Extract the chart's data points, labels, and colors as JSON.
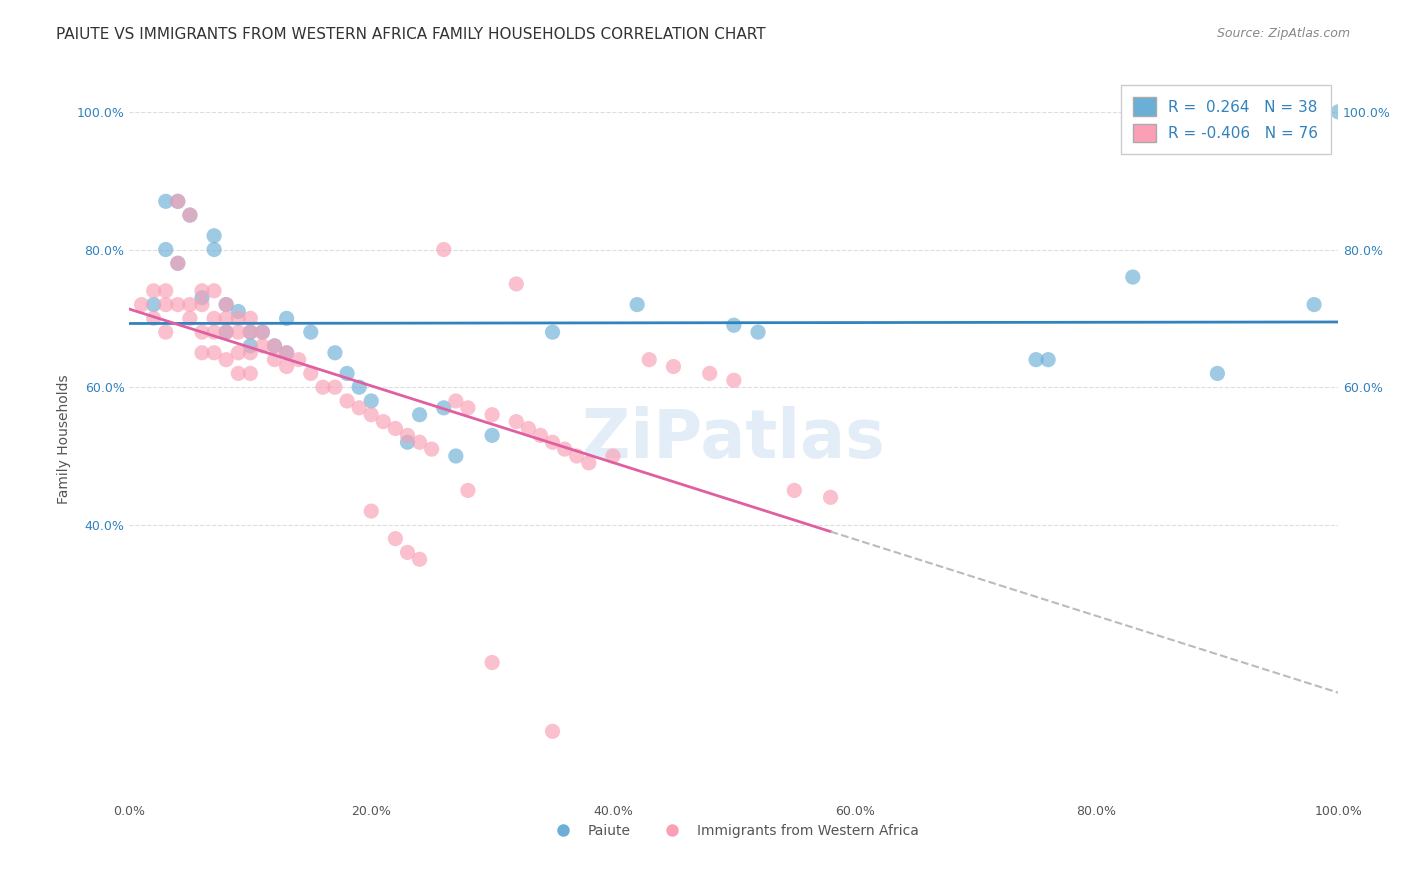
{
  "title": "PAIUTE VS IMMIGRANTS FROM WESTERN AFRICA FAMILY HOUSEHOLDS CORRELATION CHART",
  "source": "Source: ZipAtlas.com",
  "ylabel": "Family Households",
  "xlabel": "",
  "xlim": [
    0.0,
    1.0
  ],
  "ylim": [
    0.0,
    1.05
  ],
  "xtick_labels": [
    "0.0%",
    "20.0%",
    "40.0%",
    "60.0%",
    "80.0%",
    "100.0%"
  ],
  "xtick_vals": [
    0.0,
    0.2,
    0.4,
    0.6,
    0.8,
    1.0
  ],
  "ytick_left_vals": [
    0.4,
    0.6,
    0.8,
    1.0
  ],
  "ytick_left_labels": [
    "40.0%",
    "60.0%",
    "80.0%",
    "100.0%"
  ],
  "ytick_right_vals": [
    0.6,
    0.8,
    1.0
  ],
  "ytick_right_labels": [
    "60.0%",
    "80.0%",
    "100.0%"
  ],
  "blue_color": "#6baed6",
  "pink_color": "#fa9fb5",
  "blue_line_color": "#3182bd",
  "pink_line_color": "#e05fa0",
  "dashed_line_color": "#bbbbbb",
  "blue_points": [
    [
      0.02,
      0.72
    ],
    [
      0.03,
      0.8
    ],
    [
      0.03,
      0.87
    ],
    [
      0.04,
      0.87
    ],
    [
      0.04,
      0.78
    ],
    [
      0.05,
      0.85
    ],
    [
      0.06,
      0.73
    ],
    [
      0.07,
      0.82
    ],
    [
      0.07,
      0.8
    ],
    [
      0.08,
      0.72
    ],
    [
      0.08,
      0.68
    ],
    [
      0.09,
      0.71
    ],
    [
      0.1,
      0.68
    ],
    [
      0.1,
      0.66
    ],
    [
      0.11,
      0.68
    ],
    [
      0.12,
      0.66
    ],
    [
      0.13,
      0.65
    ],
    [
      0.13,
      0.7
    ],
    [
      0.15,
      0.68
    ],
    [
      0.17,
      0.65
    ],
    [
      0.18,
      0.62
    ],
    [
      0.19,
      0.6
    ],
    [
      0.2,
      0.58
    ],
    [
      0.23,
      0.52
    ],
    [
      0.24,
      0.56
    ],
    [
      0.27,
      0.5
    ],
    [
      0.3,
      0.53
    ],
    [
      0.35,
      0.68
    ],
    [
      0.42,
      0.72
    ],
    [
      0.5,
      0.69
    ],
    [
      0.52,
      0.68
    ],
    [
      0.75,
      0.64
    ],
    [
      0.76,
      0.64
    ],
    [
      0.83,
      0.76
    ],
    [
      0.9,
      0.62
    ],
    [
      0.98,
      0.72
    ],
    [
      0.26,
      0.57
    ],
    [
      1.0,
      1.0
    ]
  ],
  "pink_points": [
    [
      0.01,
      0.72
    ],
    [
      0.02,
      0.7
    ],
    [
      0.02,
      0.74
    ],
    [
      0.03,
      0.72
    ],
    [
      0.03,
      0.68
    ],
    [
      0.03,
      0.74
    ],
    [
      0.04,
      0.78
    ],
    [
      0.04,
      0.87
    ],
    [
      0.04,
      0.72
    ],
    [
      0.05,
      0.85
    ],
    [
      0.05,
      0.72
    ],
    [
      0.05,
      0.7
    ],
    [
      0.06,
      0.74
    ],
    [
      0.06,
      0.72
    ],
    [
      0.06,
      0.68
    ],
    [
      0.06,
      0.65
    ],
    [
      0.07,
      0.74
    ],
    [
      0.07,
      0.7
    ],
    [
      0.07,
      0.68
    ],
    [
      0.07,
      0.65
    ],
    [
      0.08,
      0.72
    ],
    [
      0.08,
      0.7
    ],
    [
      0.08,
      0.68
    ],
    [
      0.08,
      0.64
    ],
    [
      0.09,
      0.7
    ],
    [
      0.09,
      0.68
    ],
    [
      0.09,
      0.65
    ],
    [
      0.09,
      0.62
    ],
    [
      0.1,
      0.7
    ],
    [
      0.1,
      0.68
    ],
    [
      0.1,
      0.65
    ],
    [
      0.1,
      0.62
    ],
    [
      0.11,
      0.68
    ],
    [
      0.11,
      0.66
    ],
    [
      0.12,
      0.66
    ],
    [
      0.12,
      0.64
    ],
    [
      0.13,
      0.65
    ],
    [
      0.13,
      0.63
    ],
    [
      0.14,
      0.64
    ],
    [
      0.15,
      0.62
    ],
    [
      0.16,
      0.6
    ],
    [
      0.17,
      0.6
    ],
    [
      0.18,
      0.58
    ],
    [
      0.19,
      0.57
    ],
    [
      0.2,
      0.56
    ],
    [
      0.21,
      0.55
    ],
    [
      0.22,
      0.54
    ],
    [
      0.23,
      0.53
    ],
    [
      0.24,
      0.52
    ],
    [
      0.25,
      0.51
    ],
    [
      0.27,
      0.58
    ],
    [
      0.28,
      0.57
    ],
    [
      0.3,
      0.56
    ],
    [
      0.32,
      0.55
    ],
    [
      0.33,
      0.54
    ],
    [
      0.34,
      0.53
    ],
    [
      0.35,
      0.52
    ],
    [
      0.36,
      0.51
    ],
    [
      0.37,
      0.5
    ],
    [
      0.38,
      0.49
    ],
    [
      0.4,
      0.5
    ],
    [
      0.43,
      0.64
    ],
    [
      0.45,
      0.63
    ],
    [
      0.48,
      0.62
    ],
    [
      0.5,
      0.61
    ],
    [
      0.55,
      0.45
    ],
    [
      0.58,
      0.44
    ],
    [
      0.2,
      0.42
    ],
    [
      0.22,
      0.38
    ],
    [
      0.23,
      0.36
    ],
    [
      0.24,
      0.35
    ],
    [
      0.26,
      0.8
    ],
    [
      0.28,
      0.45
    ],
    [
      0.3,
      0.2
    ],
    [
      0.32,
      0.75
    ],
    [
      0.35,
      0.1
    ]
  ],
  "grid_color": "#dddddd",
  "bg_color": "#ffffff",
  "title_fontsize": 11,
  "axis_fontsize": 10,
  "tick_fontsize": 9,
  "source_fontsize": 9,
  "legend_fontsize": 11
}
